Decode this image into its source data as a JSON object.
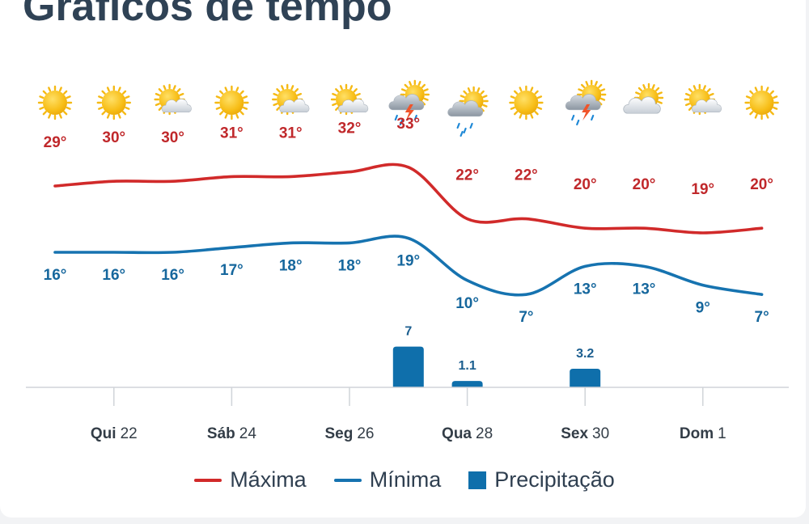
{
  "page": {
    "title": "Gráficos de tempo"
  },
  "colors": {
    "max": "#d12a2a",
    "min": "#1673b0",
    "precip": "#0f6fab",
    "axis": "#d0d4d9",
    "tick": "#333d47"
  },
  "chart_data": {
    "type": "line",
    "days": 13,
    "icons": [
      "sun",
      "sun",
      "partly-cloudy",
      "sun",
      "partly-cloudy",
      "partly-cloudy",
      "thunderstorm",
      "rain",
      "sun",
      "thunderstorm",
      "cloudy",
      "partly-cloudy",
      "sun"
    ],
    "series": [
      {
        "name": "Máxima",
        "values": [
          29,
          30,
          30,
          31,
          31,
          32,
          33,
          22,
          22,
          20,
          20,
          19,
          20
        ]
      },
      {
        "name": "Mínima",
        "values": [
          16,
          16,
          16,
          17,
          18,
          18,
          19,
          10,
          7,
          13,
          13,
          9,
          7
        ]
      }
    ],
    "max_labels": [
      "29°",
      "30°",
      "30°",
      "31°",
      "31°",
      "32°",
      "33°",
      "22°",
      "22°",
      "20°",
      "20°",
      "19°",
      "20°"
    ],
    "min_labels": [
      "16°",
      "16°",
      "16°",
      "17°",
      "18°",
      "18°",
      "19°",
      "10°",
      "7°",
      "13°",
      "13°",
      "9°",
      "7°"
    ],
    "precipitation": [
      0,
      0,
      0,
      0,
      0,
      0,
      7,
      1.1,
      0,
      3.2,
      0,
      0,
      0
    ],
    "precip_labels": [
      "",
      "",
      "",
      "",
      "",
      "",
      "7",
      "1.1",
      "",
      "3.2",
      "",
      "",
      ""
    ],
    "x_ticks": [
      {
        "index": 1,
        "day": "Qui",
        "num": "22"
      },
      {
        "index": 3,
        "day": "Sáb",
        "num": "24"
      },
      {
        "index": 5,
        "day": "Seg",
        "num": "26"
      },
      {
        "index": 7,
        "day": "Qua",
        "num": "28"
      },
      {
        "index": 9,
        "day": "Sex",
        "num": "30"
      },
      {
        "index": 11,
        "day": "Dom",
        "num": "1"
      }
    ],
    "legend": {
      "max": "Máxima",
      "min": "Mínima",
      "precip": "Precipitação",
      "position": "bottom"
    },
    "grid": false
  }
}
